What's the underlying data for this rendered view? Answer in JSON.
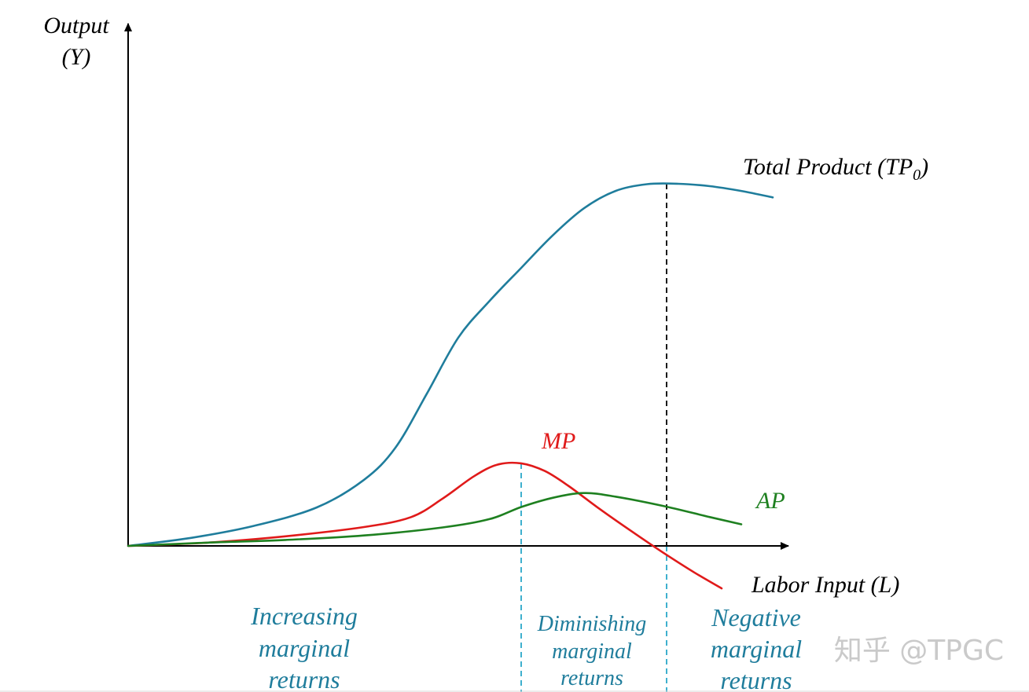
{
  "chart_data": {
    "type": "line",
    "y_axis_label_line1": "Output",
    "y_axis_label_line2": "(Y)",
    "x_axis_label": "Labor Input (L)",
    "series": [
      {
        "name": "Total Product (TP",
        "name_subscript": "0",
        "name_suffix": ")",
        "color": "#1f7d9c",
        "x": [
          0,
          0.08,
          0.16,
          0.24,
          0.3,
          0.34,
          0.38,
          0.42,
          0.46,
          0.5,
          0.54,
          0.58,
          0.62,
          0.66,
          0.7,
          0.74,
          0.78,
          0.82
        ],
        "y": [
          0,
          0.02,
          0.05,
          0.096,
          0.165,
          0.245,
          0.38,
          0.52,
          0.612,
          0.694,
          0.775,
          0.843,
          0.886,
          0.903,
          0.904,
          0.898,
          0.886,
          0.87
        ]
      },
      {
        "name": "MP",
        "color": "#e01a1a",
        "x": [
          0,
          0.1,
          0.2,
          0.3,
          0.36,
          0.4,
          0.44,
          0.47,
          0.5,
          0.53,
          0.56,
          0.6,
          0.64,
          0.68,
          0.72,
          0.755
        ],
        "y": [
          0,
          0.008,
          0.024,
          0.047,
          0.072,
          0.118,
          0.174,
          0.203,
          0.206,
          0.187,
          0.15,
          0.092,
          0.037,
          -0.016,
          -0.066,
          -0.106
        ]
      },
      {
        "name": "AP",
        "color": "#1e8020",
        "x": [
          0,
          0.1,
          0.2,
          0.3,
          0.4,
          0.46,
          0.5,
          0.54,
          0.58,
          0.62,
          0.68,
          0.74,
          0.78
        ],
        "y": [
          0,
          0.008,
          0.015,
          0.026,
          0.046,
          0.067,
          0.097,
          0.12,
          0.132,
          0.123,
          0.1,
          0.072,
          0.054
        ]
      }
    ],
    "annotations": [
      {
        "id": "mp-max",
        "x": 0.5,
        "style": "dashed",
        "color": "#2aa7c9"
      },
      {
        "id": "tp-max",
        "x": 0.685,
        "style": "dashed",
        "color": "#000000"
      },
      {
        "id": "mp-zero",
        "x": 0.685,
        "style": "dashed",
        "color": "#2aa7c9"
      }
    ],
    "regions": [
      {
        "lines": [
          "Increasing",
          "marginal",
          "returns"
        ],
        "color": "#1f7d9c"
      },
      {
        "lines": [
          "Diminishing",
          "marginal",
          "returns"
        ],
        "color": "#1f7d9c"
      },
      {
        "lines": [
          "Negative",
          "marginal",
          "returns"
        ],
        "color": "#1f7d9c"
      }
    ],
    "xlim": [
      0,
      1
    ],
    "ylim": [
      -0.15,
      1
    ],
    "grid": false,
    "legend": "none"
  },
  "watermark": "知乎 @TPGC"
}
